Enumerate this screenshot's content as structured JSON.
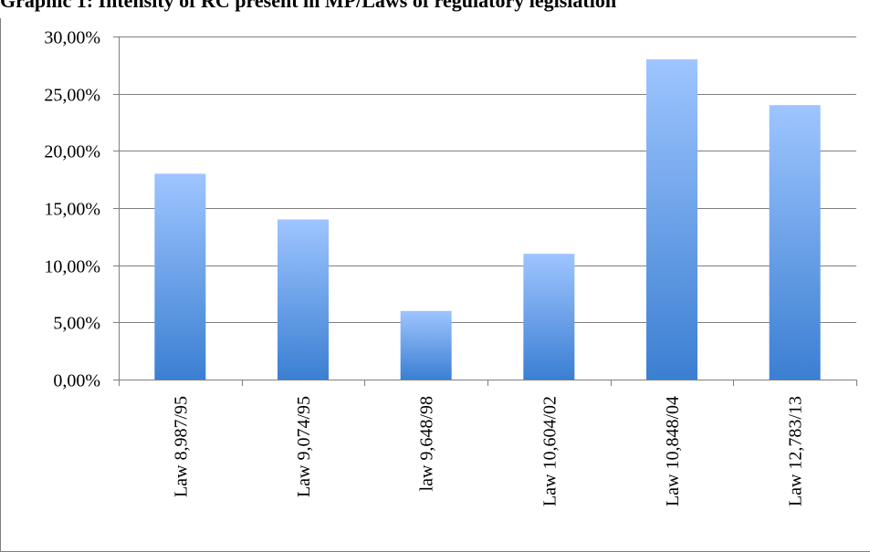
{
  "chart_data": {
    "type": "bar",
    "title": "Graphic 1: Intensity of RC present in MP/Laws of regulatory legislation",
    "xlabel": "",
    "ylabel": "",
    "categories": [
      "Law 8,987/95",
      "Law 9,074/95",
      "law 9,648/98",
      "Law 10,604/02",
      "Law 10,848/04",
      "Law 12,783/13"
    ],
    "values": [
      18,
      14,
      6,
      11,
      28,
      24
    ],
    "ylim": [
      0,
      30
    ],
    "yticks": [
      0,
      5,
      10,
      15,
      20,
      25,
      30
    ],
    "ytick_labels": [
      "0,00%",
      "5,00%",
      "10,00%",
      "15,00%",
      "20,00%",
      "25,00%",
      "30,00%"
    ],
    "grid": true,
    "legend": "none",
    "colors": {
      "bar_top": "#9ec5ff",
      "bar_bottom": "#3b7fd2",
      "gridline": "#7f7f7f",
      "axis": "#7f7f7f",
      "text": "#000000"
    }
  }
}
